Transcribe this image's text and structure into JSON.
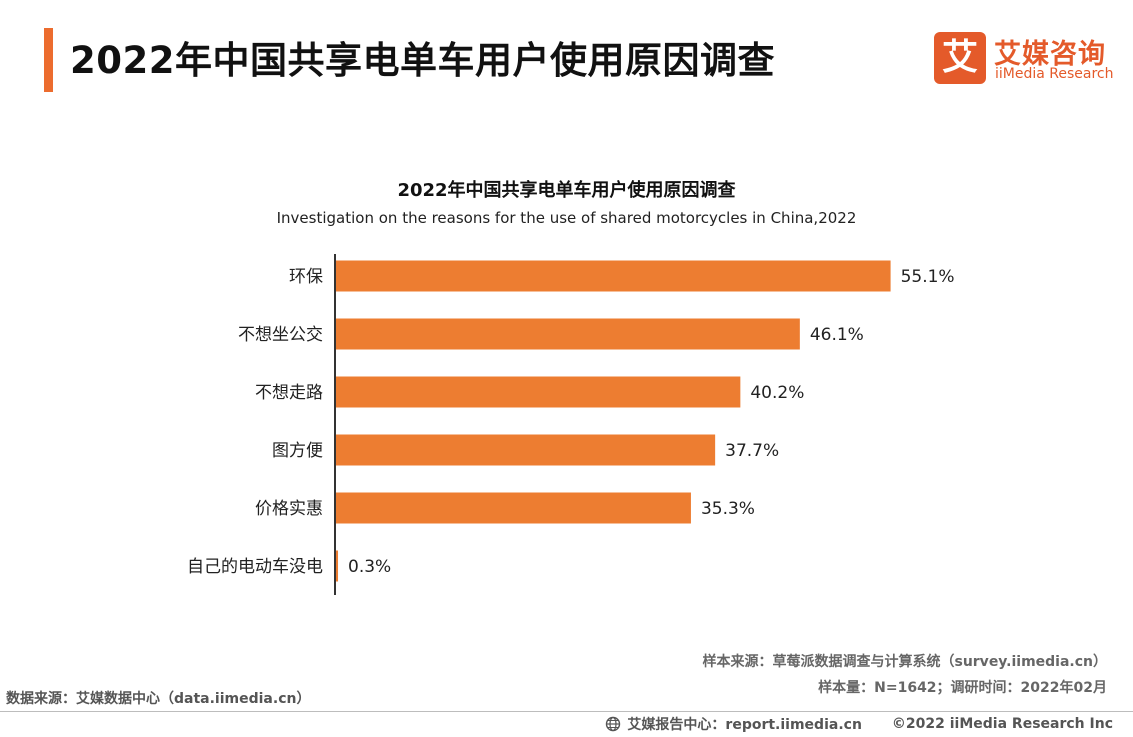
{
  "header": {
    "title": "2022年中国共享电单车用户使用原因调查"
  },
  "logo": {
    "mark": "艾",
    "name_cn": "艾媒咨询",
    "name_en": "iiMedia Research",
    "brand_color": "#e45a2a"
  },
  "chart_data": {
    "type": "bar",
    "orientation": "horizontal",
    "title": "2022年中国共享电单车用户使用原因调查",
    "subtitle": "Investigation on the reasons for the use of shared motorcycles in China,2022",
    "categories": [
      "环保",
      "不想坐公交",
      "不想走路",
      "图方便",
      "价格实惠",
      "自己的电动车没电"
    ],
    "values": [
      55.1,
      46.1,
      40.2,
      37.7,
      35.3,
      0.3
    ],
    "value_labels": [
      "55.1%",
      "46.1%",
      "40.2%",
      "37.7%",
      "35.3%",
      "0.3%"
    ],
    "unit": "%",
    "xlim": [
      0,
      60
    ],
    "grid": false,
    "legend": "none",
    "bar_color": "#ed7d31",
    "axis_color": "#333333"
  },
  "sources": {
    "sample_source": "样本来源：草莓派数据调查与计算系统（survey.iimedia.cn）",
    "sample_info": "样本量：N=1642；调研时间：2022年02月",
    "data_source": "数据来源：艾媒数据中心（data.iimedia.cn）"
  },
  "footer": {
    "icon": "globe-icon",
    "report_center": "艾媒报告中心：report.iimedia.cn",
    "copyright": "©2022  iiMedia Research  Inc"
  }
}
